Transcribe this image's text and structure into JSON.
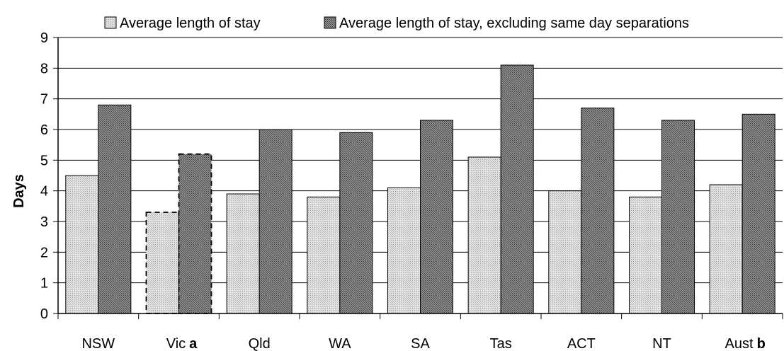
{
  "chart_data": {
    "type": "bar",
    "title": "",
    "xlabel": "",
    "ylabel": "Days",
    "ylim": [
      0,
      9
    ],
    "yticks": [
      0,
      1,
      2,
      3,
      4,
      5,
      6,
      7,
      8,
      9
    ],
    "grid": true,
    "legend_position": "top",
    "categories": [
      "NSW",
      "Vic",
      "Qld",
      "WA",
      "SA",
      "Tas",
      "ACT",
      "NT",
      "Aust"
    ],
    "category_notes": [
      "",
      "a",
      "",
      "",
      "",
      "",
      "",
      "",
      "b"
    ],
    "series": [
      {
        "name": "Average length of stay",
        "pattern": "light-hatch",
        "values": [
          4.5,
          3.3,
          3.9,
          3.8,
          4.1,
          5.1,
          4.0,
          3.8,
          4.2
        ]
      },
      {
        "name": "Average length of stay, excluding same day separations",
        "pattern": "dark-hatch",
        "values": [
          6.8,
          5.2,
          6.0,
          5.9,
          6.3,
          8.1,
          6.7,
          6.3,
          6.5
        ]
      }
    ],
    "dashed_categories": [
      "Vic"
    ]
  }
}
